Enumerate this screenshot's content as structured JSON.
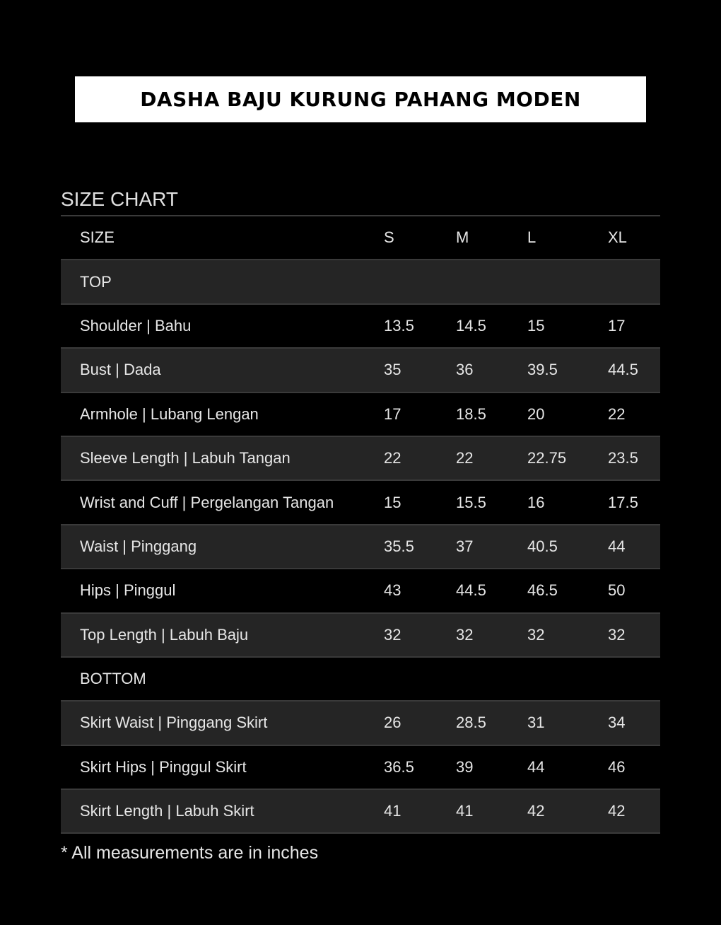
{
  "title": "DASHA BAJU KURUNG PAHANG MODEN",
  "section_title": "SIZE CHART",
  "header": [
    "SIZE",
    "S",
    "M",
    "L",
    "XL"
  ],
  "rows": [
    {
      "type": "section",
      "label": "TOP"
    },
    {
      "type": "data",
      "label": "Shoulder | Bahu",
      "values": [
        "13.5",
        "14.5",
        "15",
        "17"
      ]
    },
    {
      "type": "data",
      "label": "Bust | Dada",
      "values": [
        "35",
        "36",
        "39.5",
        "44.5"
      ]
    },
    {
      "type": "data",
      "label": "Armhole | Lubang Lengan",
      "values": [
        "17",
        "18.5",
        "20",
        "22"
      ]
    },
    {
      "type": "data",
      "label": "Sleeve Length | Labuh Tangan",
      "values": [
        "22",
        "22",
        "22.75",
        "23.5"
      ]
    },
    {
      "type": "data",
      "label": "Wrist and Cuff | Pergelangan Tangan",
      "values": [
        "15",
        "15.5",
        "16",
        "17.5"
      ]
    },
    {
      "type": "data",
      "label": "Waist | Pinggang",
      "values": [
        "35.5",
        "37",
        "40.5",
        "44"
      ]
    },
    {
      "type": "data",
      "label": "Hips | Pinggul",
      "values": [
        "43",
        "44.5",
        "46.5",
        "50"
      ]
    },
    {
      "type": "data",
      "label": "Top Length | Labuh Baju",
      "values": [
        "32",
        "32",
        "32",
        "32"
      ]
    },
    {
      "type": "section",
      "label": "BOTTOM"
    },
    {
      "type": "data",
      "label": "Skirt Waist | Pinggang Skirt",
      "values": [
        "26",
        "28.5",
        "31",
        "34"
      ]
    },
    {
      "type": "data",
      "label": "Skirt Hips | Pinggul Skirt",
      "values": [
        "36.5",
        "39",
        "44",
        "46"
      ]
    },
    {
      "type": "data",
      "label": "Skirt Length | Labuh Skirt",
      "values": [
        "41",
        "41",
        "42",
        "42"
      ]
    }
  ],
  "note": "* All measurements are in inches",
  "colors": {
    "background": "#000000",
    "shaded_row": "#252525",
    "title_box": "#ffffff"
  }
}
